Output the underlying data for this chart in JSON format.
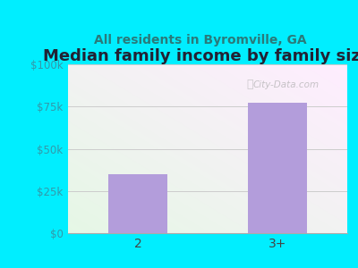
{
  "title": "Median family income by family size",
  "subtitle": "All residents in Byromville, GA",
  "categories": [
    "2",
    "3+"
  ],
  "values": [
    35000,
    77000
  ],
  "bar_color": "#b39ddb",
  "background_color": "#00eeff",
  "ylim": [
    0,
    100000
  ],
  "yticks": [
    0,
    25000,
    50000,
    75000,
    100000
  ],
  "ytick_labels": [
    "$0",
    "$25k",
    "$50k",
    "$75k",
    "$100k"
  ],
  "title_fontsize": 13,
  "subtitle_fontsize": 10,
  "title_color": "#222233",
  "subtitle_color": "#2a7a7a",
  "tick_color": "#3399aa",
  "watermark": "City-Data.com"
}
